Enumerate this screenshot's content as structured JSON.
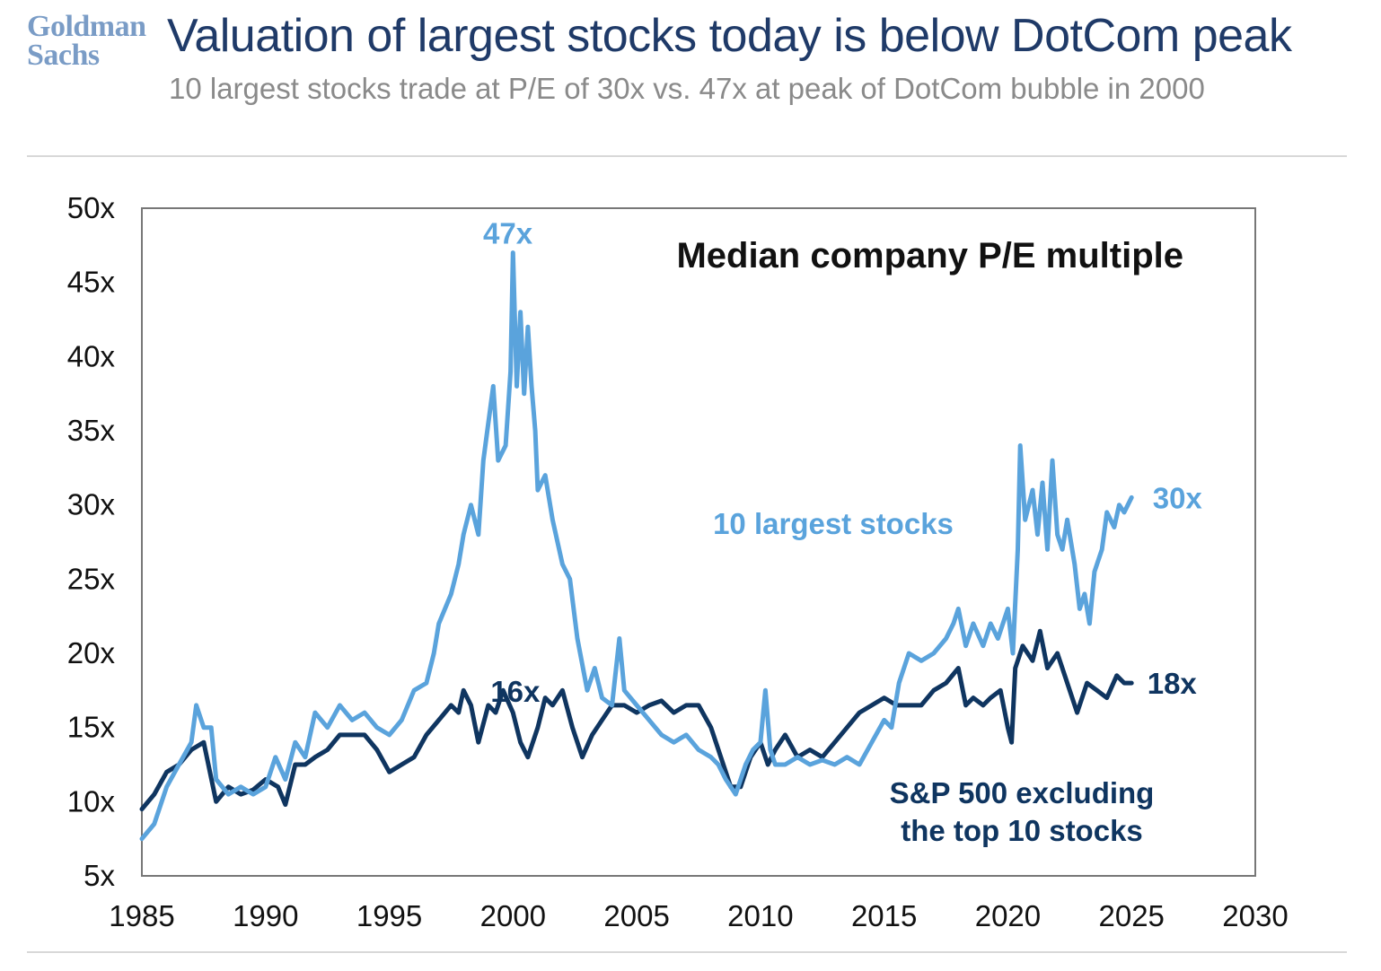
{
  "header": {
    "logo_line1": "Goldman",
    "logo_line2": "Sachs",
    "title": "Valuation of largest stocks today is below DotCom peak",
    "subtitle": "10 largest stocks trade at P/E of 30x vs. 47x at peak of DotCom bubble in 2000"
  },
  "colors": {
    "largest": "#5aa3dc",
    "sp500_ex": "#0f3560",
    "axis": "#777777",
    "text": "#111111"
  },
  "chart_data": {
    "type": "line",
    "title": "Median company P/E multiple",
    "xlim": [
      1985,
      2030
    ],
    "ylim": [
      5,
      50
    ],
    "x_ticks": [
      1985,
      1990,
      1995,
      2000,
      2005,
      2010,
      2015,
      2020,
      2025,
      2030
    ],
    "x_tick_labels": [
      "1985",
      "1990",
      "1995",
      "2000",
      "2005",
      "2010",
      "2015",
      "2020",
      "2025",
      "2030"
    ],
    "y_ticks": [
      5,
      10,
      15,
      20,
      25,
      30,
      35,
      40,
      45,
      50
    ],
    "y_tick_labels": [
      "5x",
      "10x",
      "15x",
      "20x",
      "25x",
      "30x",
      "35x",
      "40x",
      "45x",
      "50x"
    ],
    "grid": false,
    "series": [
      {
        "name": "10 largest stocks",
        "label_lines": [
          "10 largest stocks"
        ],
        "color_key": "largest",
        "points": [
          [
            1985.0,
            7.5
          ],
          [
            1985.5,
            8.5
          ],
          [
            1986.0,
            11.0
          ],
          [
            1986.5,
            12.5
          ],
          [
            1987.0,
            14.0
          ],
          [
            1987.2,
            16.5
          ],
          [
            1987.5,
            15.0
          ],
          [
            1987.8,
            15.0
          ],
          [
            1988.0,
            11.5
          ],
          [
            1988.5,
            10.5
          ],
          [
            1989.0,
            11.0
          ],
          [
            1989.5,
            10.5
          ],
          [
            1990.0,
            11.0
          ],
          [
            1990.4,
            13.0
          ],
          [
            1990.8,
            11.5
          ],
          [
            1991.2,
            14.0
          ],
          [
            1991.6,
            13.0
          ],
          [
            1992.0,
            16.0
          ],
          [
            1992.5,
            15.0
          ],
          [
            1993.0,
            16.5
          ],
          [
            1993.5,
            15.5
          ],
          [
            1994.0,
            16.0
          ],
          [
            1994.5,
            15.0
          ],
          [
            1995.0,
            14.5
          ],
          [
            1995.5,
            15.5
          ],
          [
            1996.0,
            17.5
          ],
          [
            1996.5,
            18.0
          ],
          [
            1996.8,
            20.0
          ],
          [
            1997.0,
            22.0
          ],
          [
            1997.5,
            24.0
          ],
          [
            1997.8,
            26.0
          ],
          [
            1998.0,
            28.0
          ],
          [
            1998.3,
            30.0
          ],
          [
            1998.6,
            28.0
          ],
          [
            1998.8,
            33.0
          ],
          [
            1999.0,
            35.5
          ],
          [
            1999.2,
            38.0
          ],
          [
            1999.4,
            33.0
          ],
          [
            1999.7,
            34.0
          ],
          [
            1999.9,
            39.0
          ],
          [
            2000.0,
            47.0
          ],
          [
            2000.15,
            38.0
          ],
          [
            2000.3,
            43.0
          ],
          [
            2000.45,
            37.5
          ],
          [
            2000.6,
            42.0
          ],
          [
            2000.75,
            38.0
          ],
          [
            2000.9,
            35.0
          ],
          [
            2001.0,
            31.0
          ],
          [
            2001.3,
            32.0
          ],
          [
            2001.6,
            29.0
          ],
          [
            2002.0,
            26.0
          ],
          [
            2002.3,
            25.0
          ],
          [
            2002.6,
            21.0
          ],
          [
            2003.0,
            17.5
          ],
          [
            2003.3,
            19.0
          ],
          [
            2003.6,
            17.0
          ],
          [
            2004.0,
            16.5
          ],
          [
            2004.3,
            21.0
          ],
          [
            2004.5,
            17.5
          ],
          [
            2005.0,
            16.5
          ],
          [
            2005.5,
            15.5
          ],
          [
            2006.0,
            14.5
          ],
          [
            2006.5,
            14.0
          ],
          [
            2007.0,
            14.5
          ],
          [
            2007.5,
            13.5
          ],
          [
            2008.0,
            13.0
          ],
          [
            2008.3,
            12.5
          ],
          [
            2008.6,
            11.5
          ],
          [
            2009.0,
            10.5
          ],
          [
            2009.4,
            12.5
          ],
          [
            2009.7,
            13.5
          ],
          [
            2010.0,
            14.0
          ],
          [
            2010.2,
            17.5
          ],
          [
            2010.4,
            13.5
          ],
          [
            2010.6,
            12.5
          ],
          [
            2011.0,
            12.5
          ],
          [
            2011.5,
            13.0
          ],
          [
            2012.0,
            12.5
          ],
          [
            2012.5,
            12.8
          ],
          [
            2013.0,
            12.5
          ],
          [
            2013.5,
            13.0
          ],
          [
            2014.0,
            12.5
          ],
          [
            2014.5,
            14.0
          ],
          [
            2015.0,
            15.5
          ],
          [
            2015.3,
            15.0
          ],
          [
            2015.6,
            18.0
          ],
          [
            2016.0,
            20.0
          ],
          [
            2016.5,
            19.5
          ],
          [
            2017.0,
            20.0
          ],
          [
            2017.5,
            21.0
          ],
          [
            2017.8,
            22.0
          ],
          [
            2018.0,
            23.0
          ],
          [
            2018.3,
            20.5
          ],
          [
            2018.6,
            22.0
          ],
          [
            2019.0,
            20.5
          ],
          [
            2019.3,
            22.0
          ],
          [
            2019.6,
            21.0
          ],
          [
            2020.0,
            23.0
          ],
          [
            2020.2,
            20.0
          ],
          [
            2020.4,
            27.0
          ],
          [
            2020.5,
            34.0
          ],
          [
            2020.7,
            29.0
          ],
          [
            2021.0,
            31.0
          ],
          [
            2021.2,
            28.0
          ],
          [
            2021.4,
            31.5
          ],
          [
            2021.6,
            27.0
          ],
          [
            2021.8,
            33.0
          ],
          [
            2022.0,
            28.0
          ],
          [
            2022.2,
            27.0
          ],
          [
            2022.4,
            29.0
          ],
          [
            2022.7,
            26.0
          ],
          [
            2022.9,
            23.0
          ],
          [
            2023.1,
            24.0
          ],
          [
            2023.3,
            22.0
          ],
          [
            2023.5,
            25.5
          ],
          [
            2023.8,
            27.0
          ],
          [
            2024.0,
            29.5
          ],
          [
            2024.3,
            28.5
          ],
          [
            2024.5,
            30.0
          ],
          [
            2024.7,
            29.5
          ],
          [
            2025.0,
            30.5
          ]
        ]
      },
      {
        "name": "S&P 500 excluding the top 10 stocks",
        "label_lines": [
          "S&P 500 excluding",
          "the top 10 stocks"
        ],
        "color_key": "sp500_ex",
        "points": [
          [
            1985.0,
            9.5
          ],
          [
            1985.5,
            10.5
          ],
          [
            1986.0,
            12.0
          ],
          [
            1986.5,
            12.5
          ],
          [
            1987.0,
            13.5
          ],
          [
            1987.5,
            14.0
          ],
          [
            1988.0,
            10.0
          ],
          [
            1988.5,
            11.0
          ],
          [
            1989.0,
            10.5
          ],
          [
            1989.5,
            10.8
          ],
          [
            1990.0,
            11.5
          ],
          [
            1990.5,
            11.0
          ],
          [
            1990.8,
            9.8
          ],
          [
            1991.2,
            12.5
          ],
          [
            1991.6,
            12.5
          ],
          [
            1992.0,
            13.0
          ],
          [
            1992.5,
            13.5
          ],
          [
            1993.0,
            14.5
          ],
          [
            1993.5,
            14.5
          ],
          [
            1994.0,
            14.5
          ],
          [
            1994.5,
            13.5
          ],
          [
            1995.0,
            12.0
          ],
          [
            1995.5,
            12.5
          ],
          [
            1996.0,
            13.0
          ],
          [
            1996.5,
            14.5
          ],
          [
            1997.0,
            15.5
          ],
          [
            1997.5,
            16.5
          ],
          [
            1997.8,
            16.0
          ],
          [
            1998.0,
            17.5
          ],
          [
            1998.3,
            16.5
          ],
          [
            1998.6,
            14.0
          ],
          [
            1999.0,
            16.5
          ],
          [
            1999.3,
            16.0
          ],
          [
            1999.6,
            17.5
          ],
          [
            2000.0,
            16.0
          ],
          [
            2000.3,
            14.0
          ],
          [
            2000.6,
            13.0
          ],
          [
            2001.0,
            15.0
          ],
          [
            2001.3,
            17.0
          ],
          [
            2001.6,
            16.5
          ],
          [
            2002.0,
            17.5
          ],
          [
            2002.4,
            15.0
          ],
          [
            2002.8,
            13.0
          ],
          [
            2003.2,
            14.5
          ],
          [
            2003.6,
            15.5
          ],
          [
            2004.0,
            16.5
          ],
          [
            2004.5,
            16.5
          ],
          [
            2005.0,
            16.0
          ],
          [
            2005.5,
            16.5
          ],
          [
            2006.0,
            16.8
          ],
          [
            2006.5,
            16.0
          ],
          [
            2007.0,
            16.5
          ],
          [
            2007.5,
            16.5
          ],
          [
            2008.0,
            15.0
          ],
          [
            2008.4,
            13.0
          ],
          [
            2008.8,
            11.0
          ],
          [
            2009.2,
            11.0
          ],
          [
            2009.6,
            13.0
          ],
          [
            2010.0,
            14.0
          ],
          [
            2010.3,
            12.5
          ],
          [
            2010.6,
            13.5
          ],
          [
            2011.0,
            14.5
          ],
          [
            2011.5,
            13.0
          ],
          [
            2012.0,
            13.5
          ],
          [
            2012.5,
            13.0
          ],
          [
            2013.0,
            14.0
          ],
          [
            2013.5,
            15.0
          ],
          [
            2014.0,
            16.0
          ],
          [
            2014.5,
            16.5
          ],
          [
            2015.0,
            17.0
          ],
          [
            2015.5,
            16.5
          ],
          [
            2016.0,
            16.5
          ],
          [
            2016.5,
            16.5
          ],
          [
            2017.0,
            17.5
          ],
          [
            2017.5,
            18.0
          ],
          [
            2018.0,
            19.0
          ],
          [
            2018.3,
            16.5
          ],
          [
            2018.6,
            17.0
          ],
          [
            2019.0,
            16.5
          ],
          [
            2019.3,
            17.0
          ],
          [
            2019.7,
            17.5
          ],
          [
            2020.0,
            15.0
          ],
          [
            2020.15,
            14.0
          ],
          [
            2020.3,
            19.0
          ],
          [
            2020.6,
            20.5
          ],
          [
            2021.0,
            19.5
          ],
          [
            2021.3,
            21.5
          ],
          [
            2021.6,
            19.0
          ],
          [
            2022.0,
            20.0
          ],
          [
            2022.4,
            18.0
          ],
          [
            2022.8,
            16.0
          ],
          [
            2023.2,
            18.0
          ],
          [
            2023.6,
            17.5
          ],
          [
            2024.0,
            17.0
          ],
          [
            2024.4,
            18.5
          ],
          [
            2024.7,
            18.0
          ],
          [
            2025.0,
            18.0
          ]
        ]
      }
    ],
    "annotations": [
      {
        "text": "47x",
        "x": 1999.9,
        "y": 47.0,
        "color_key": "largest"
      },
      {
        "text": "16x",
        "x": 2000.6,
        "y": 16.5,
        "color_key": "sp500_ex"
      },
      {
        "text": "30x",
        "x": 2025.2,
        "y": 30.5,
        "color_key": "largest"
      },
      {
        "text": "18x",
        "x": 2025.2,
        "y": 18.0,
        "color_key": "sp500_ex"
      }
    ]
  }
}
